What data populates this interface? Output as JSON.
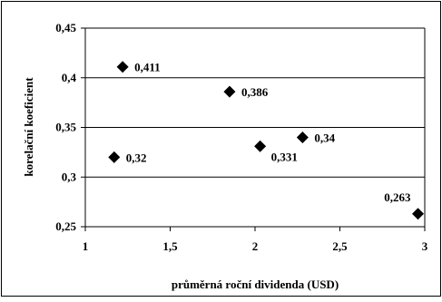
{
  "chart_data": {
    "type": "scatter",
    "title": "",
    "xlabel": "průměrná roční dividenda (USD)",
    "ylabel": "korelační koeficient",
    "xlim": [
      1,
      3
    ],
    "ylim": [
      0.25,
      0.45
    ],
    "grid": "horizontal",
    "x_ticks": [
      {
        "value": 1,
        "label": "1"
      },
      {
        "value": 1.5,
        "label": "1,5"
      },
      {
        "value": 2,
        "label": "2"
      },
      {
        "value": 2.5,
        "label": "2,5"
      },
      {
        "value": 3,
        "label": "3"
      }
    ],
    "y_ticks": [
      {
        "value": 0.25,
        "label": "0,25"
      },
      {
        "value": 0.3,
        "label": "0,3"
      },
      {
        "value": 0.35,
        "label": "0,35"
      },
      {
        "value": 0.4,
        "label": "0,4"
      },
      {
        "value": 0.45,
        "label": "0,45"
      }
    ],
    "points": [
      {
        "x": 1.22,
        "y": 0.411,
        "label": "0,411",
        "label_side": "right"
      },
      {
        "x": 1.85,
        "y": 0.386,
        "label": "0,386",
        "label_side": "right"
      },
      {
        "x": 1.17,
        "y": 0.32,
        "label": "0,32",
        "label_side": "right"
      },
      {
        "x": 2.03,
        "y": 0.331,
        "label": "0,331",
        "label_side": "below-right"
      },
      {
        "x": 2.28,
        "y": 0.34,
        "label": "0,34",
        "label_side": "right"
      },
      {
        "x": 2.96,
        "y": 0.263,
        "label": "0,263",
        "label_side": "above-left"
      }
    ],
    "marker": "diamond",
    "marker_color": "#000000"
  }
}
